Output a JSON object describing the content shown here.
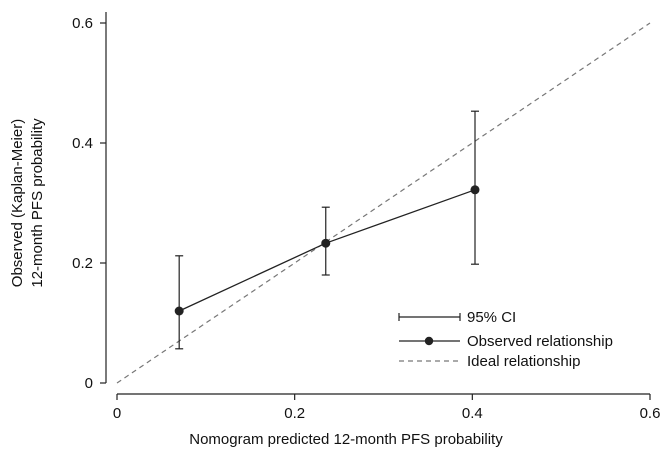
{
  "chart_data": {
    "type": "line",
    "title": "",
    "xlabel": "Nomogram predicted 12-month PFS probability",
    "ylabel_lines": [
      "Observed (Kaplan-Meier)",
      "12-month PFS probability"
    ],
    "xlim": [
      0,
      0.6
    ],
    "ylim": [
      0,
      0.6
    ],
    "x_ticks": [
      0,
      0.2,
      0.4,
      0.6
    ],
    "x_tick_labels": [
      "0",
      "0.2",
      "0.4",
      "0.6"
    ],
    "y_ticks": [
      0,
      0.2,
      0.4,
      0.6
    ],
    "y_tick_labels": [
      "0",
      "0.2",
      "0.4",
      "0.6"
    ],
    "grid": false,
    "legend_position": "bottom-right",
    "series": [
      {
        "name": "Observed relationship",
        "x": [
          0.07,
          0.235,
          0.403
        ],
        "y": [
          0.12,
          0.233,
          0.322
        ],
        "ci_lower": [
          0.057,
          0.18,
          0.198
        ],
        "ci_upper": [
          0.212,
          0.293,
          0.453
        ]
      },
      {
        "name": "Ideal relationship",
        "x": [
          0,
          0.6
        ],
        "y": [
          0,
          0.6
        ],
        "style": "dashed"
      }
    ],
    "legend": [
      "95% CI",
      "Observed relationship",
      "Ideal relationship"
    ],
    "colors": {
      "line": "#222222",
      "ideal": "#777777",
      "axis": "#222222"
    }
  }
}
